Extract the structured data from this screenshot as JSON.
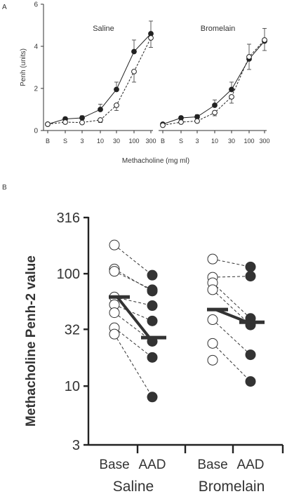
{
  "panel_labels": {
    "a": "A",
    "b": "B"
  },
  "chart_data": [
    {
      "type": "line",
      "panel": "A",
      "title": "Saline",
      "xlabel": "Methacholine (mg ml)",
      "ylabel": "Penh (units)",
      "categories": [
        "B",
        "S",
        "3",
        "10",
        "30",
        "100",
        "300"
      ],
      "yticks": [
        "0",
        "2",
        "4",
        "6"
      ],
      "ylim": [
        0,
        6
      ],
      "series": [
        {
          "marker": "filled-circle",
          "line": "solid",
          "values": [
            0.3,
            0.55,
            0.6,
            1.0,
            1.95,
            3.75,
            4.6
          ],
          "errors": [
            0.05,
            0.08,
            0.1,
            0.25,
            0.35,
            0.55,
            0.6
          ]
        },
        {
          "marker": "open-circle",
          "line": "dashed",
          "values": [
            0.3,
            0.4,
            0.38,
            0.5,
            1.2,
            2.8,
            4.4
          ],
          "errors": [
            0.05,
            0.05,
            0.05,
            0.12,
            0.25,
            0.5,
            0.45
          ]
        }
      ]
    },
    {
      "type": "line",
      "panel": "A",
      "title": "Bromelain",
      "xlabel": "Methacholine (mg ml)",
      "categories": [
        "B",
        "S",
        "3",
        "10",
        "30",
        "100",
        "300"
      ],
      "ylim": [
        0,
        6
      ],
      "series": [
        {
          "marker": "filled-circle",
          "line": "solid",
          "values": [
            0.3,
            0.6,
            0.65,
            1.2,
            1.95,
            3.4,
            4.25
          ],
          "errors": [
            0.05,
            0.08,
            0.1,
            0.25,
            0.35,
            0.7,
            0.6
          ]
        },
        {
          "marker": "open-circle",
          "line": "dashed",
          "values": [
            0.25,
            0.4,
            0.45,
            0.85,
            1.6,
            3.5,
            4.3
          ],
          "errors": [
            0.05,
            0.05,
            0.06,
            0.15,
            0.3,
            0.6,
            0.5
          ]
        }
      ]
    },
    {
      "type": "scatter",
      "panel": "B",
      "ylabel": "Methacholine Penh-2 value",
      "yscale": "log",
      "ylim": [
        3,
        316
      ],
      "yticks": [
        "3",
        "10",
        "32",
        "100",
        "316"
      ],
      "ytick_values": [
        3,
        10,
        32,
        100,
        316
      ],
      "groups": [
        {
          "name": "Saline",
          "categories": [
            "Base",
            "AAD"
          ],
          "base": [
            180,
            110,
            105,
            62,
            53,
            45,
            33,
            29
          ],
          "aad": [
            97,
            70,
            72,
            52,
            38,
            25,
            18,
            8
          ],
          "means": [
            62,
            27
          ]
        },
        {
          "name": "Bromelain",
          "categories": [
            "Base",
            "AAD"
          ],
          "base": [
            135,
            93,
            83,
            72,
            39,
            24,
            17
          ],
          "aad": [
            115,
            95,
            40,
            35,
            19,
            11
          ],
          "means": [
            48,
            37
          ]
        }
      ]
    }
  ]
}
